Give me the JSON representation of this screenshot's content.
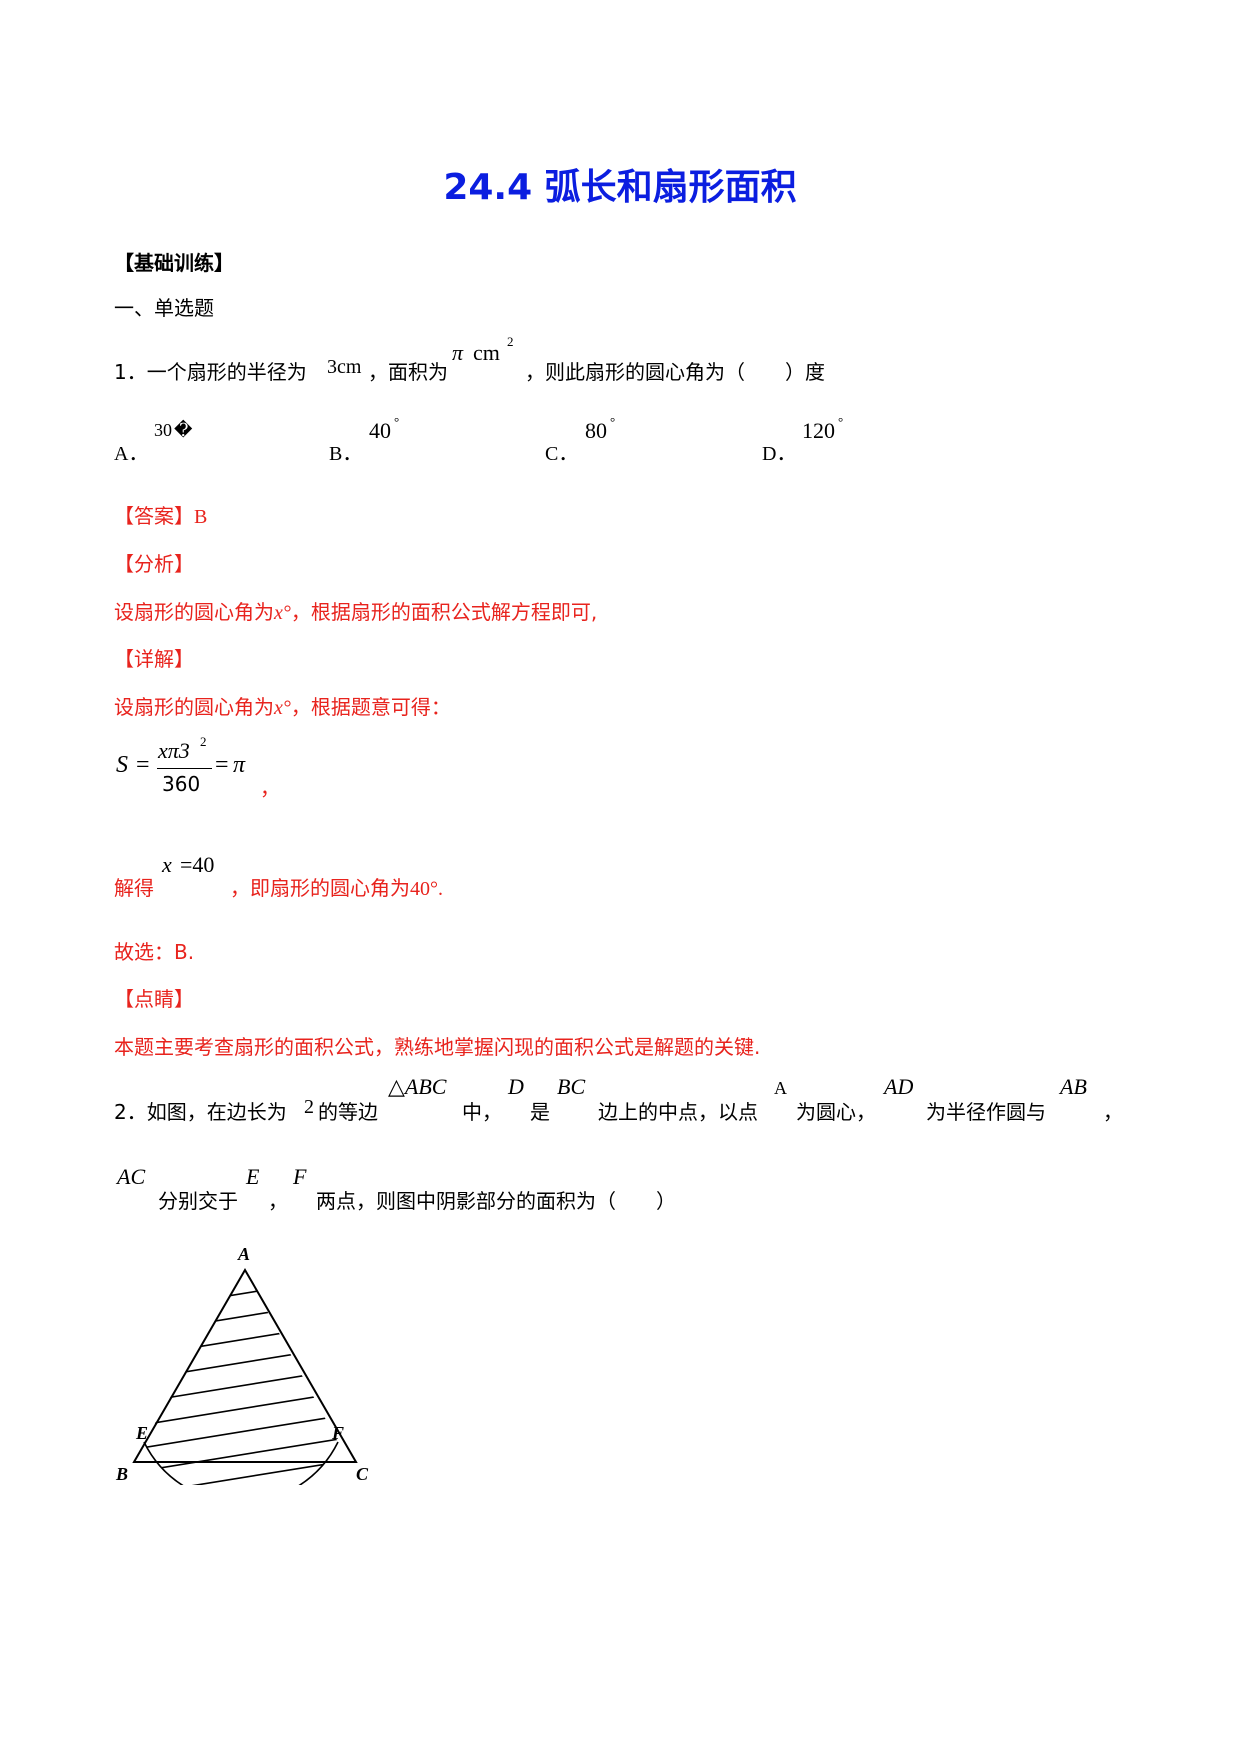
{
  "title": "24.4 弧长和扇形面积",
  "section": "【基础训练】",
  "subsection": "一、单选题",
  "q1": {
    "prefix": "1．一个扇形的半径为",
    "radius": "3cm",
    "mid": "，面积为",
    "area_pi": "π",
    "area_unit": "cm",
    "area_exp": "2",
    "suffix": "，则此扇形的圆心角为（　　）度",
    "options": [
      {
        "label": "A．",
        "value": "30",
        "deg": "�"
      },
      {
        "label": "B．",
        "value": "40",
        "deg": "°"
      },
      {
        "label": "C．",
        "value": "80",
        "deg": "°"
      },
      {
        "label": "D．",
        "value": "120",
        "deg": "°"
      }
    ],
    "answer_tag": "【答案】",
    "answer": "B",
    "analysis_tag": "【分析】",
    "analysis_a": "设扇形的圆心角为",
    "analysis_var": "x°",
    "analysis_b": "，根据扇形的面积公式解方程即可,",
    "detail_tag": "【详解】",
    "detail_a": "设扇形的圆心角为",
    "detail_var": "x°",
    "detail_b": "，根据题意可得：",
    "formula_S": "S",
    "formula_eq1": "=",
    "formula_num": "xπ3",
    "formula_num_exp": "2",
    "formula_den": "360",
    "formula_eq2": "=",
    "formula_pi": "π",
    "formula_comma": "，",
    "solve_a": "解得",
    "solve_x": "x",
    "solve_eq": "=40",
    "solve_b": "，即扇形的圆心角为",
    "solve_c": "40°.",
    "choose": "故选：B.",
    "comment_tag": "【点睛】",
    "comment": "本题主要考查扇形的面积公式，熟练地掌握闪现的面积公式是解题的关键."
  },
  "q2": {
    "p1": "2．如图，在边长为",
    "side": "2",
    "p2": "的等边",
    "tri": "△ABC",
    "p3": "中，",
    "D": "D",
    "p4": "是",
    "BC": "BC",
    "p5": "边上的中点，以点",
    "A": "A",
    "p6": "为圆心，",
    "AD": "AD",
    "p7": "为半径作圆与",
    "AB": "AB",
    "p8": "，",
    "AC": "AC",
    "p9": "分别交于",
    "E": "E",
    "comma": "，",
    "F": "F",
    "p10": "两点，则图中阴影部分的面积为（　　）",
    "figure_labels": {
      "A": "A",
      "B": "B",
      "C": "C",
      "E": "E",
      "F": "F"
    }
  }
}
